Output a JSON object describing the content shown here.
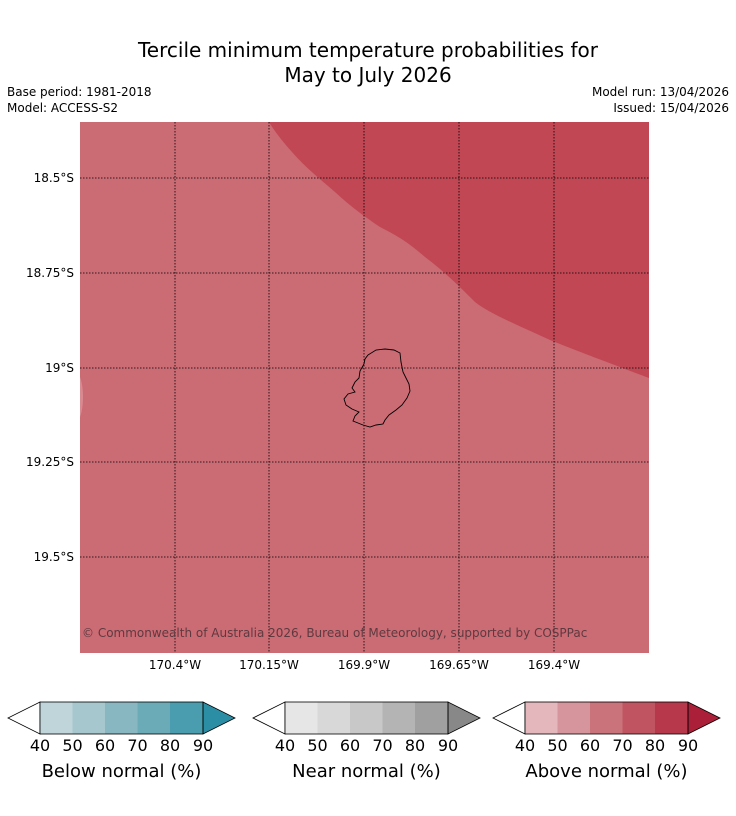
{
  "title_line1": "Tercile minimum temperature probabilities for",
  "title_line2": "May to July 2026",
  "base_period": "Base period: 1981-2018",
  "model": "Model: ACCESS-S2",
  "model_run": "Model run: 13/04/2026",
  "issued": "Issued: 15/04/2026",
  "copyright": "© Commonwealth of Australia 2026, Bureau of Meteorology, supported by COSPPac",
  "lat_labels": [
    "18.5°S",
    "18.75°S",
    "19°S",
    "19.25°S",
    "19.5°S"
  ],
  "lon_labels": [
    "170.4°W",
    "170.15°W",
    "169.9°W",
    "169.65°W",
    "169.4°W"
  ],
  "colors": {
    "above_70_80": "#cb6b74",
    "above_80_90": "#c04753"
  },
  "colorbars": [
    {
      "title": "Below normal (%)",
      "ticks": [
        "40",
        "50",
        "60",
        "70",
        "80",
        "90"
      ],
      "colors": [
        "#ffffff",
        "#bfd5da",
        "#a6c7cd",
        "#88b7c2",
        "#6babb8",
        "#4a9dae",
        "#2b8ea4"
      ]
    },
    {
      "title": "Near normal (%)",
      "ticks": [
        "40",
        "50",
        "60",
        "70",
        "80",
        "90"
      ],
      "colors": [
        "#ffffff",
        "#e6e6e6",
        "#d8d8d8",
        "#c8c8c8",
        "#b4b4b4",
        "#a0a0a0",
        "#888888"
      ]
    },
    {
      "title": "Above normal (%)",
      "ticks": [
        "40",
        "50",
        "60",
        "70",
        "80",
        "90"
      ],
      "colors": [
        "#ffffff",
        "#e3b7bb",
        "#d6959c",
        "#cb737b",
        "#c05461",
        "#b7384b",
        "#ab1f38"
      ]
    }
  ]
}
